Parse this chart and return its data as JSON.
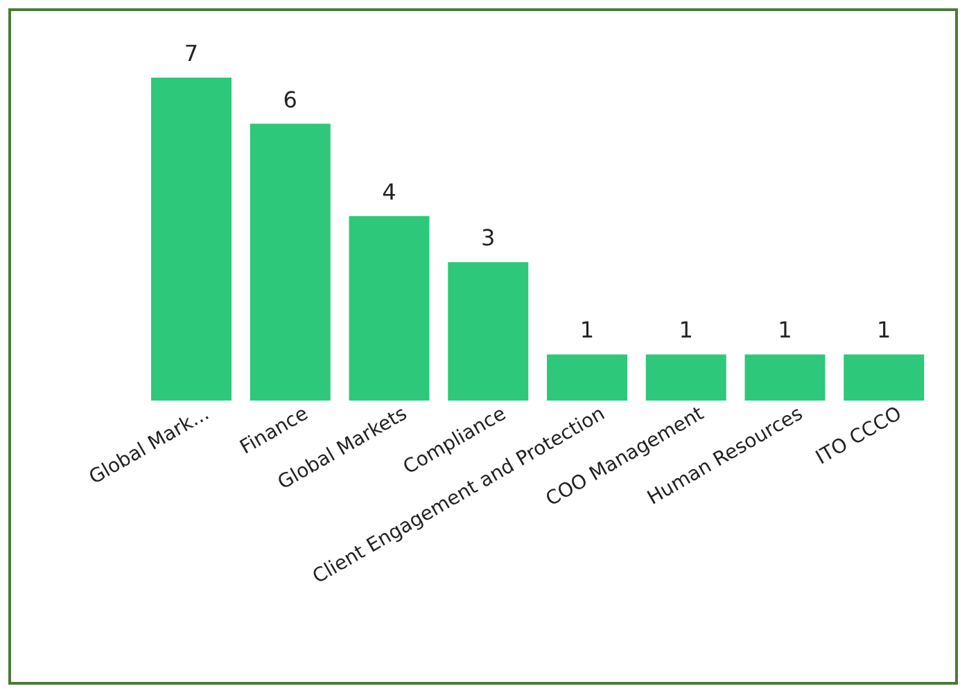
{
  "chart_data": {
    "type": "bar",
    "categories": [
      "Global Mark...",
      "Finance",
      "Global Markets",
      "Compliance",
      "Client Engagement and Protection",
      "COO Management",
      "Human Resources",
      "ITO CCCO"
    ],
    "values": [
      7,
      6,
      4,
      3,
      1,
      1,
      1,
      1
    ],
    "color": "#2ec87a",
    "data_labels": true,
    "tick_labels": "x",
    "grid": false,
    "legend": false
  }
}
